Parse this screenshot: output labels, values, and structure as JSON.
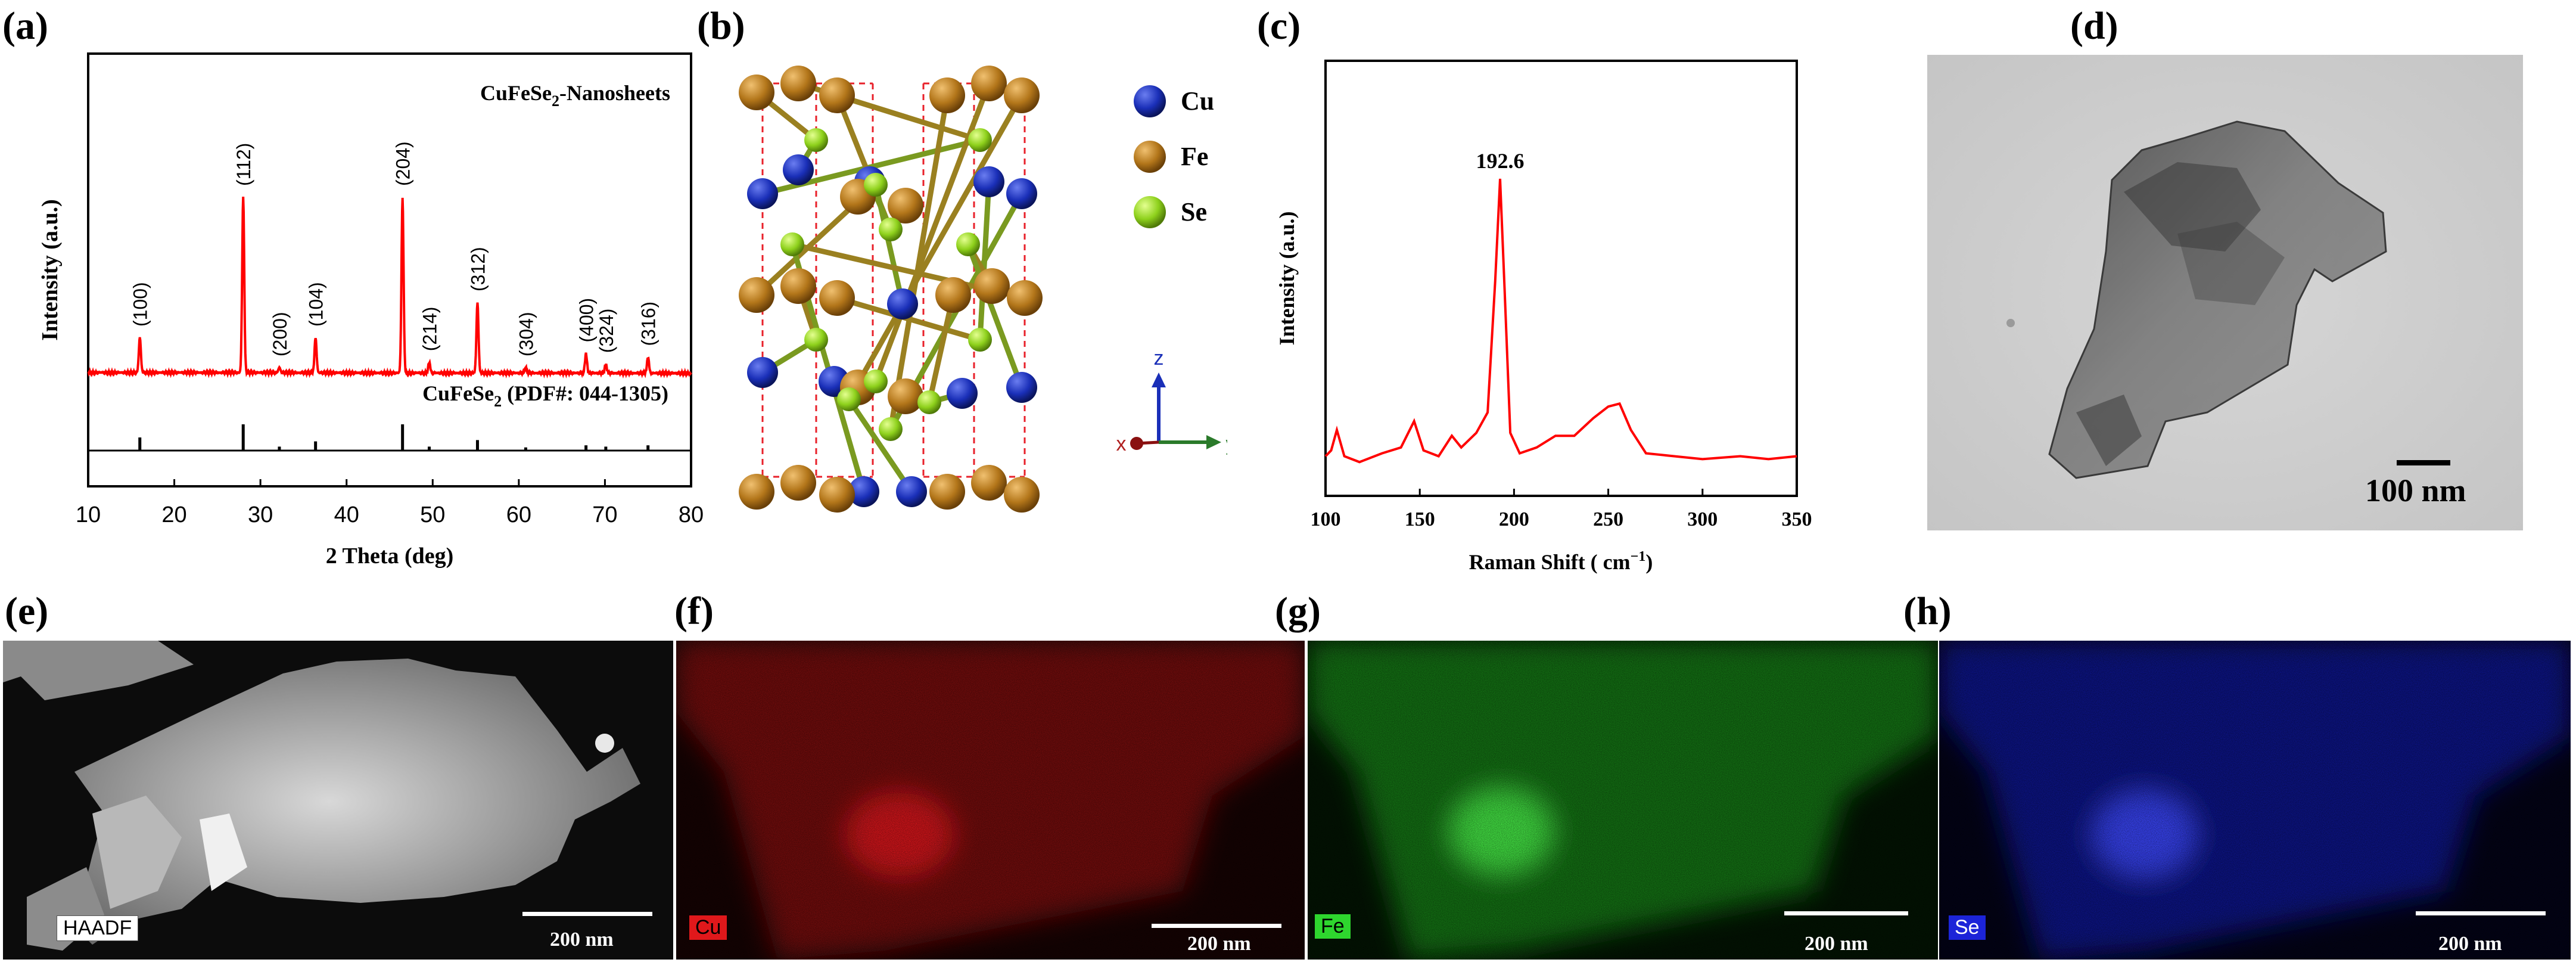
{
  "panels": {
    "a": {
      "label": "(a)"
    },
    "b": {
      "label": "(b)"
    },
    "c": {
      "label": "(c)"
    },
    "d": {
      "label": "(d)",
      "scale_bar": "100 nm"
    },
    "e": {
      "label": "(e)",
      "tag": "HAADF",
      "scale_bar": "200 nm"
    },
    "f": {
      "label": "(f)",
      "tag": "Cu",
      "scale_bar": "200 nm"
    },
    "g": {
      "label": "(g)",
      "tag": "Fe",
      "scale_bar": "200 nm"
    },
    "h": {
      "label": "(h)",
      "tag": "Se",
      "scale_bar": "200 nm"
    }
  },
  "crystal": {
    "legend": [
      {
        "label": "Cu",
        "color": "#1a2fb8"
      },
      {
        "label": "Fe",
        "color": "#b3761a"
      },
      {
        "label": "Se",
        "color": "#8ed11c"
      }
    ],
    "axes": {
      "z": "z",
      "x": "x",
      "y": "y"
    }
  },
  "colors": {
    "xrd": "#ff0000",
    "raman": "#ff0000",
    "cu_map": "#e0181b",
    "fe_map": "#2ed62e",
    "se_map": "#1c24d8"
  },
  "chart_data": [
    {
      "type": "line",
      "panel": "a",
      "title": "CuFeSe2-Nanosheets",
      "title_main": "CuFeSe",
      "title_sub": "2",
      "title_tail": "-Nanosheets",
      "xlabel": "2 Theta (deg)",
      "ylabel": "Intensity (a.u.)",
      "xlim": [
        10,
        80
      ],
      "xticks": [
        10,
        20,
        30,
        40,
        50,
        60,
        70,
        80
      ],
      "series": [
        {
          "name": "CuFeSe2-Nanosheets",
          "baseline": 0.1,
          "peaks": [
            {
              "x": 16.0,
              "h": 0.2,
              "label": "(100)"
            },
            {
              "x": 28.0,
              "h": 1.0,
              "label": "(112)"
            },
            {
              "x": 32.2,
              "h": 0.03,
              "label": "(200)"
            },
            {
              "x": 36.4,
              "h": 0.2,
              "label": "(104)"
            },
            {
              "x": 46.5,
              "h": 1.0,
              "label": "(204)"
            },
            {
              "x": 49.6,
              "h": 0.06,
              "label": "(214)"
            },
            {
              "x": 55.2,
              "h": 0.4,
              "label": "(312)"
            },
            {
              "x": 60.8,
              "h": 0.03,
              "label": "(304)"
            },
            {
              "x": 67.8,
              "h": 0.11,
              "label": "(400)"
            },
            {
              "x": 70.1,
              "h": 0.05,
              "label": "(324)"
            },
            {
              "x": 75.0,
              "h": 0.09,
              "label": "(316)"
            }
          ]
        }
      ],
      "reference": {
        "name": "CuFeSe2 (PDF#: 044-1305)",
        "name_main": "CuFeSe",
        "name_sub": "2",
        "name_tail": " (PDF#: 044-1305)",
        "sticks": [
          {
            "x": 16.0,
            "h": 0.5
          },
          {
            "x": 28.0,
            "h": 1.0
          },
          {
            "x": 32.2,
            "h": 0.15
          },
          {
            "x": 36.4,
            "h": 0.35
          },
          {
            "x": 46.5,
            "h": 1.0
          },
          {
            "x": 49.6,
            "h": 0.15
          },
          {
            "x": 55.2,
            "h": 0.4
          },
          {
            "x": 60.8,
            "h": 0.12
          },
          {
            "x": 67.8,
            "h": 0.2
          },
          {
            "x": 70.1,
            "h": 0.15
          },
          {
            "x": 75.0,
            "h": 0.2
          }
        ]
      }
    },
    {
      "type": "line",
      "panel": "c",
      "xlabel": "Raman Shift ( cm",
      "xlabel_sup": "−1",
      "xlabel_tail": ")",
      "ylabel": "Intensity (a.u.)",
      "xlim": [
        100,
        350
      ],
      "xticks": [
        100,
        150,
        200,
        250,
        300,
        350
      ],
      "annotation": "192.6",
      "series": [
        {
          "name": "Raman",
          "points": [
            [
              100,
              0.05
            ],
            [
              103,
              0.07
            ],
            [
              106,
              0.14
            ],
            [
              110,
              0.05
            ],
            [
              118,
              0.03
            ],
            [
              130,
              0.06
            ],
            [
              140,
              0.08
            ],
            [
              147,
              0.17
            ],
            [
              152,
              0.07
            ],
            [
              160,
              0.05
            ],
            [
              167,
              0.12
            ],
            [
              172,
              0.08
            ],
            [
              180,
              0.13
            ],
            [
              186,
              0.2
            ],
            [
              190,
              0.65
            ],
            [
              192.6,
              1.0
            ],
            [
              195,
              0.62
            ],
            [
              198,
              0.13
            ],
            [
              203,
              0.06
            ],
            [
              212,
              0.08
            ],
            [
              222,
              0.12
            ],
            [
              232,
              0.12
            ],
            [
              242,
              0.18
            ],
            [
              250,
              0.22
            ],
            [
              256,
              0.23
            ],
            [
              262,
              0.14
            ],
            [
              270,
              0.06
            ],
            [
              285,
              0.05
            ],
            [
              300,
              0.04
            ],
            [
              320,
              0.05
            ],
            [
              335,
              0.04
            ],
            [
              350,
              0.05
            ]
          ]
        }
      ]
    }
  ]
}
